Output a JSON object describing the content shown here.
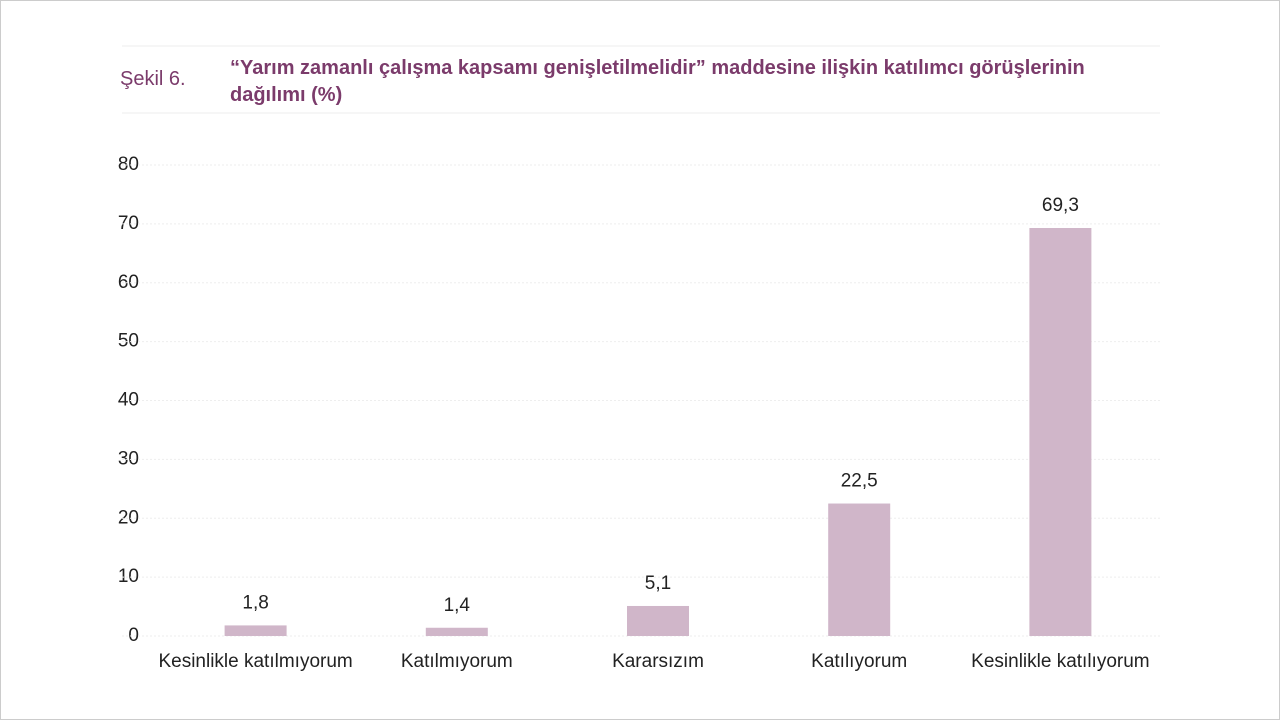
{
  "chart_data": {
    "type": "bar",
    "figure_label": "Şekil 6.",
    "title": "“Yarım zamanlı çalışma kapsamı genişletilmelidir” maddesine ilişkin katılımcı görüşlerinin dağılımı (%)",
    "categories": [
      "Kesinlikle katılmıyorum",
      "Katılmıyorum",
      "Kararsızım",
      "Katılıyorum",
      "Kesinlikle katılıyorum"
    ],
    "values": [
      1.8,
      1.4,
      5.1,
      22.5,
      69.3
    ],
    "value_labels": [
      "1,8",
      "1,4",
      "5,1",
      "22,5",
      "69,3"
    ],
    "color": "#d0b6c9",
    "ylim": [
      0,
      80
    ],
    "yticks": [
      0,
      10,
      20,
      30,
      40,
      50,
      60,
      70,
      80
    ],
    "grid": true
  }
}
